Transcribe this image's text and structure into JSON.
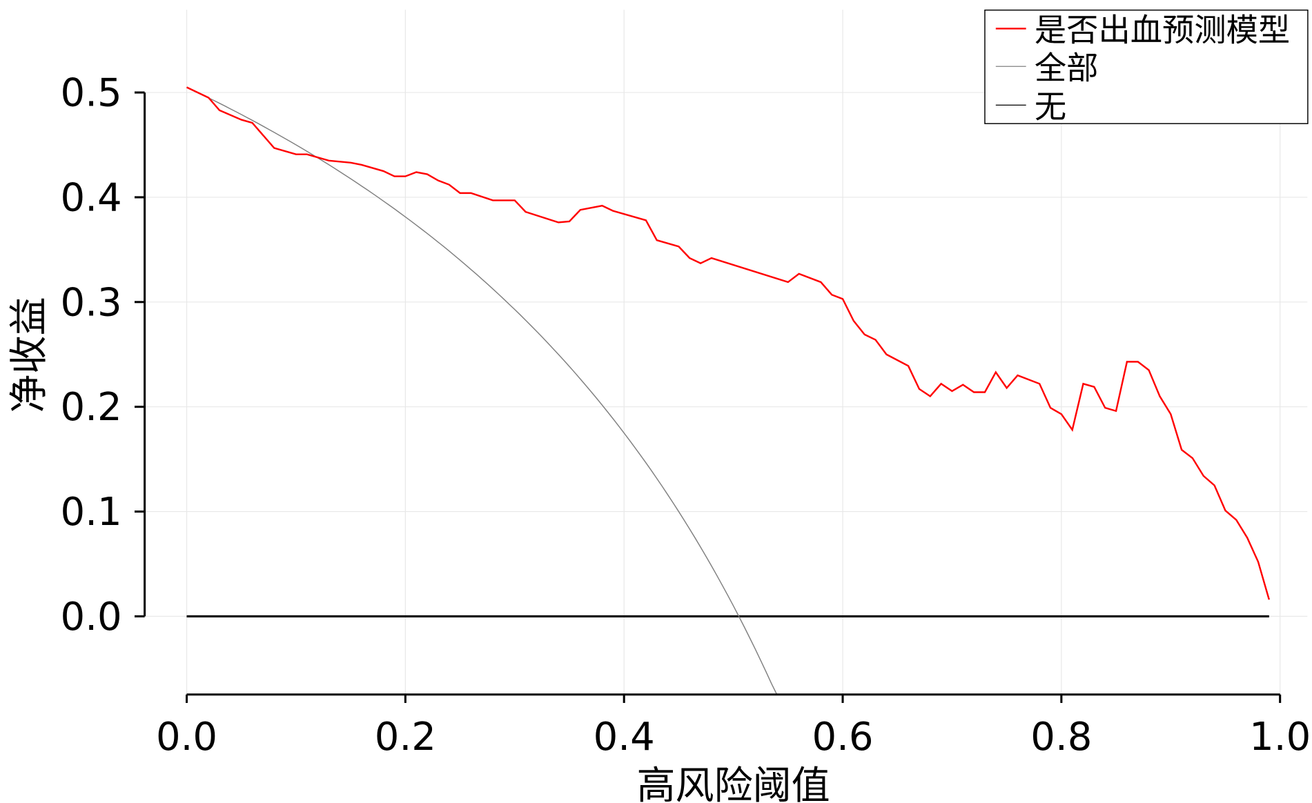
{
  "chart_data": {
    "type": "line",
    "title": "",
    "xlabel": "高风险阈值",
    "ylabel": "净收益",
    "xlim": [
      -0.038,
      1.025
    ],
    "ylim": [
      -0.075,
      0.579
    ],
    "xticks": [
      0.0,
      0.2,
      0.4,
      0.6,
      0.8,
      1.0
    ],
    "xtick_labels": [
      "0.0",
      "0.2",
      "0.4",
      "0.6",
      "0.8",
      "1.0"
    ],
    "yticks": [
      0.0,
      0.1,
      0.2,
      0.3,
      0.4,
      0.5
    ],
    "ytick_labels": [
      "0.0",
      "0.1",
      "0.2",
      "0.3",
      "0.4",
      "0.5"
    ],
    "grid": true,
    "legend_position": "top-right",
    "series": [
      {
        "name": "是否出血预测模型",
        "color": "#ff0000",
        "x": [
          0,
          0.02,
          0.03,
          0.05,
          0.06,
          0.08,
          0.1,
          0.11,
          0.13,
          0.15,
          0.16,
          0.18,
          0.19,
          0.2,
          0.21,
          0.22,
          0.23,
          0.24,
          0.25,
          0.26,
          0.28,
          0.3,
          0.31,
          0.34,
          0.35,
          0.36,
          0.38,
          0.39,
          0.42,
          0.43,
          0.45,
          0.46,
          0.47,
          0.48,
          0.55,
          0.56,
          0.58,
          0.59,
          0.6,
          0.61,
          0.62,
          0.63,
          0.64,
          0.66,
          0.67,
          0.68,
          0.69,
          0.7,
          0.71,
          0.72,
          0.73,
          0.74,
          0.75,
          0.76,
          0.78,
          0.79,
          0.8,
          0.81,
          0.82,
          0.83,
          0.84,
          0.85,
          0.86,
          0.87,
          0.88,
          0.89,
          0.9,
          0.91,
          0.92,
          0.93,
          0.94,
          0.95,
          0.96,
          0.97,
          0.98,
          0.99
        ],
        "y": [
          0.505,
          0.495,
          0.483,
          0.474,
          0.471,
          0.447,
          0.441,
          0.441,
          0.435,
          0.433,
          0.431,
          0.425,
          0.42,
          0.42,
          0.424,
          0.422,
          0.416,
          0.412,
          0.404,
          0.404,
          0.397,
          0.397,
          0.386,
          0.376,
          0.377,
          0.388,
          0.392,
          0.387,
          0.378,
          0.359,
          0.353,
          0.342,
          0.337,
          0.342,
          0.319,
          0.327,
          0.319,
          0.307,
          0.303,
          0.282,
          0.269,
          0.264,
          0.25,
          0.239,
          0.217,
          0.21,
          0.222,
          0.215,
          0.221,
          0.214,
          0.214,
          0.233,
          0.218,
          0.23,
          0.222,
          0.199,
          0.193,
          0.178,
          0.222,
          0.219,
          0.199,
          0.196,
          0.243,
          0.243,
          0.235,
          0.21,
          0.193,
          0.159,
          0.151,
          0.134,
          0.125,
          0.101,
          0.092,
          0.075,
          0.052,
          0.016
        ]
      },
      {
        "name": "全部",
        "color": "#808080",
        "prevalence": 0.505,
        "x_range": [
          0,
          0.54
        ]
      },
      {
        "name": "无",
        "color": "#000000",
        "value": 0,
        "x_range": [
          0,
          0.99
        ]
      }
    ]
  }
}
